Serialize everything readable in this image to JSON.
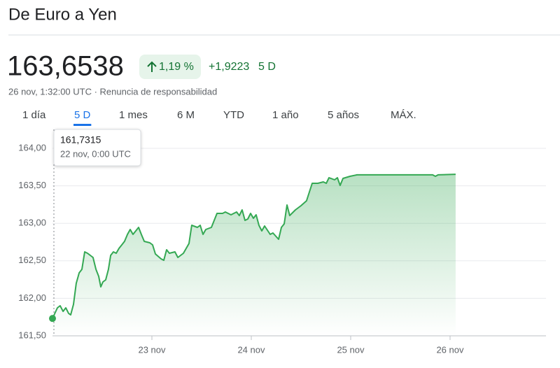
{
  "header": {
    "title": "De Euro a Yen",
    "price": "163,6538",
    "change_percent": "1,19 %",
    "change_value": "+1,9223",
    "period": "5 D",
    "subtitle": "26 nov, 1:32:00 UTC · Renuncia de responsabilidad"
  },
  "tabs": [
    "1 día",
    "5 D",
    "1 mes",
    "6 M",
    "YTD",
    "1 año",
    "5 años",
    "MÁX."
  ],
  "active_tab": 1,
  "tooltip": {
    "value": "161,7315",
    "time": "22 nov, 0:00 UTC"
  },
  "chart_data": {
    "type": "line",
    "x": [
      22,
      22.049,
      22.077,
      22.106,
      22.134,
      22.162,
      22.183,
      22.211,
      22.239,
      22.268,
      22.296,
      22.324,
      22.352,
      22.38,
      22.408,
      22.437,
      22.465,
      22.486,
      22.507,
      22.535,
      22.563,
      22.585,
      22.613,
      22.641,
      22.669,
      22.697,
      22.725,
      22.754,
      22.782,
      22.81,
      22.838,
      22.866,
      22.894,
      22.923,
      22.979,
      23.007,
      23.035,
      23.092,
      23.12,
      23.148,
      23.176,
      23.232,
      23.261,
      23.317,
      23.345,
      23.373,
      23.401,
      23.458,
      23.486,
      23.514,
      23.542,
      23.599,
      23.627,
      23.655,
      23.711,
      23.739,
      23.796,
      23.852,
      23.88,
      23.908,
      23.937,
      23.965,
      23.993,
      24.021,
      24.049,
      24.077,
      24.106,
      24.134,
      24.19,
      24.218,
      24.275,
      24.303,
      24.331,
      24.359,
      24.387,
      24.444,
      24.5,
      24.556,
      24.585,
      24.613,
      24.669,
      24.725,
      24.754,
      24.782,
      24.838,
      24.866,
      24.894,
      24.923,
      24.993,
      25.063,
      25.824,
      25.852,
      25.88,
      26.056
    ],
    "series": [
      {
        "color": "#34a853",
        "values": [
          161.7315,
          161.873,
          161.901,
          161.826,
          161.873,
          161.799,
          161.78,
          161.92,
          162.2,
          162.34,
          162.386,
          162.619,
          162.601,
          162.573,
          162.545,
          162.386,
          162.293,
          162.153,
          162.218,
          162.246,
          162.386,
          162.573,
          162.619,
          162.601,
          162.666,
          162.713,
          162.759,
          162.853,
          162.918,
          162.853,
          162.899,
          162.946,
          162.853,
          162.759,
          162.741,
          162.713,
          162.591,
          162.526,
          162.507,
          162.647,
          162.601,
          162.619,
          162.545,
          162.601,
          162.666,
          162.731,
          162.974,
          162.946,
          162.974,
          162.853,
          162.918,
          162.946,
          163.039,
          163.132,
          163.132,
          163.151,
          163.114,
          163.151,
          163.104,
          163.179,
          163.039,
          163.058,
          163.132,
          163.067,
          163.114,
          162.974,
          162.899,
          162.965,
          162.853,
          162.871,
          162.787,
          162.946,
          162.993,
          163.244,
          163.104,
          163.179,
          163.235,
          163.3,
          163.422,
          163.534,
          163.534,
          163.552,
          163.534,
          163.608,
          163.58,
          163.608,
          163.506,
          163.599,
          163.627,
          163.646,
          163.646,
          163.627,
          163.646,
          163.6538
        ]
      }
    ],
    "xlim": [
      22,
      26.965
    ],
    "ylim": [
      161.5,
      164
    ],
    "xticks": [
      {
        "value": 23,
        "label": "23 nov"
      },
      {
        "value": 24,
        "label": "24 nov"
      },
      {
        "value": 25,
        "label": "25 nov"
      },
      {
        "value": 26,
        "label": "26 nov"
      }
    ],
    "yticks": [
      {
        "value": 161.5,
        "label": "161,50"
      },
      {
        "value": 162,
        "label": "162,00"
      },
      {
        "value": 162.5,
        "label": "162,50"
      },
      {
        "value": 163,
        "label": "163,00"
      },
      {
        "value": 163.5,
        "label": "163,50"
      },
      {
        "value": 164,
        "label": "164,00"
      }
    ],
    "grid": true
  }
}
